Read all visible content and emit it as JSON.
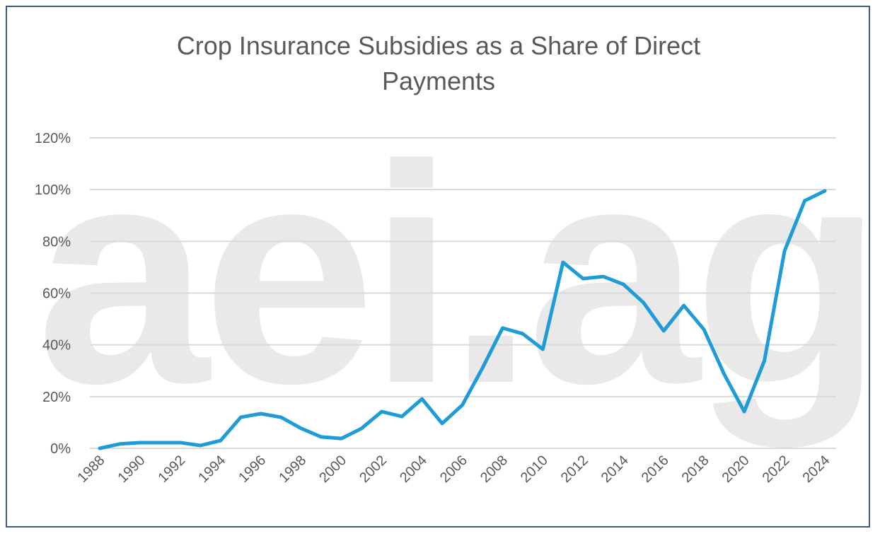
{
  "chart_data": {
    "type": "line",
    "title": "Crop Insurance Subsidies as a Share of Direct Payments",
    "watermark": "aei.ag",
    "x": [
      1988,
      1989,
      1990,
      1991,
      1992,
      1993,
      1994,
      1995,
      1996,
      1997,
      1998,
      1999,
      2000,
      2001,
      2002,
      2003,
      2004,
      2005,
      2006,
      2007,
      2008,
      2009,
      2010,
      2011,
      2012,
      2013,
      2014,
      2015,
      2016,
      2017,
      2018,
      2019,
      2020,
      2021,
      2022,
      2023,
      2024
    ],
    "series": [
      {
        "name": "Crop Insurance Subsidies as a Share of Direct Payments",
        "color": "#1f9bd7",
        "values": [
          0,
          1.7,
          2.2,
          2.2,
          2.2,
          1.1,
          3,
          12,
          13.4,
          12,
          7.7,
          4.4,
          3.8,
          7.7,
          14.2,
          12.3,
          19.1,
          9.6,
          16.7,
          31,
          46.5,
          44.3,
          38.3,
          71.9,
          65.6,
          66.4,
          63.4,
          56.3,
          45.4,
          55.2,
          45.9,
          28.7,
          14.2,
          33.9,
          76.3,
          95.7,
          99.5
        ]
      }
    ],
    "xlim": [
      1988,
      2024
    ],
    "xticks": [
      1988,
      1990,
      1992,
      1994,
      1996,
      1998,
      2000,
      2002,
      2004,
      2006,
      2008,
      2010,
      2012,
      2014,
      2016,
      2018,
      2020,
      2022,
      2024
    ],
    "ylim": [
      0,
      120
    ],
    "yticks": [
      {
        "value": 0,
        "label": "0%"
      },
      {
        "value": 20,
        "label": "20%"
      },
      {
        "value": 40,
        "label": "40%"
      },
      {
        "value": 60,
        "label": "60%"
      },
      {
        "value": 80,
        "label": "80%"
      },
      {
        "value": 100,
        "label": "100%"
      },
      {
        "value": 120,
        "label": "120%"
      }
    ],
    "grid": true
  }
}
